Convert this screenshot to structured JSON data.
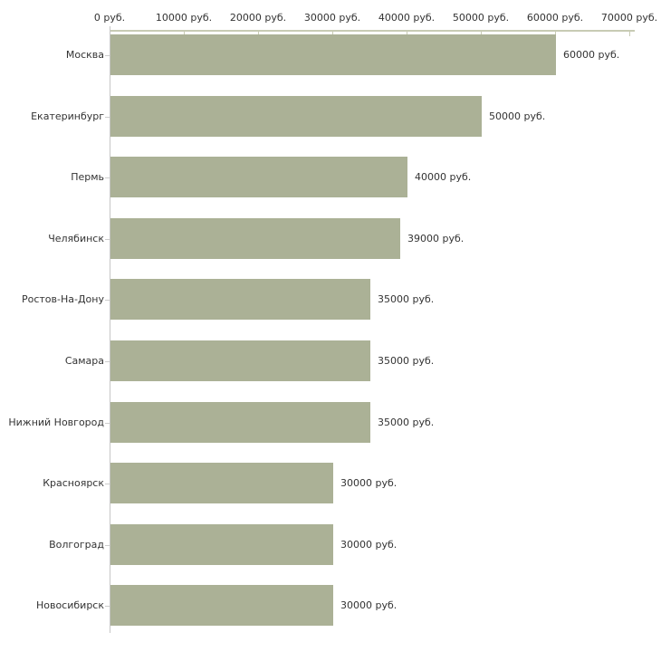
{
  "chart_data": {
    "type": "bar",
    "orientation": "horizontal",
    "title": "",
    "xlabel": "",
    "ylabel": "",
    "unit": "руб.",
    "xlim": [
      0,
      70000
    ],
    "grid": false,
    "legend": null,
    "categories": [
      "Москва",
      "Екатеринбург",
      "Пермь",
      "Челябинск",
      "Ростов-На-Дону",
      "Самара",
      "Нижний Новгород",
      "Красноярск",
      "Волгоград",
      "Новосибирск"
    ],
    "values": [
      60000,
      50000,
      40000,
      39000,
      35000,
      35000,
      35000,
      30000,
      30000,
      30000
    ],
    "value_labels": [
      "60000 руб.",
      "50000 руб.",
      "40000 руб.",
      "39000 руб.",
      "35000 руб.",
      "35000 руб.",
      "35000 руб.",
      "30000 руб.",
      "30000 руб.",
      "30000 руб."
    ],
    "x_ticks": [
      0,
      10000,
      20000,
      30000,
      40000,
      50000,
      60000,
      70000
    ],
    "x_tick_labels": [
      "0 руб.",
      "10000 руб.",
      "20000 руб.",
      "30000 руб.",
      "40000 руб.",
      "50000 руб.",
      "60000 руб.",
      "70000 руб."
    ],
    "colors": {
      "bar": "#abb196",
      "x_axis_line": "#c8cbb4",
      "x_axis_tick": "#c8cbb4",
      "y_axis_line": "#c6c6c6",
      "category_tick": "#cccccc",
      "text": "#333333",
      "background": "#ffffff"
    }
  }
}
